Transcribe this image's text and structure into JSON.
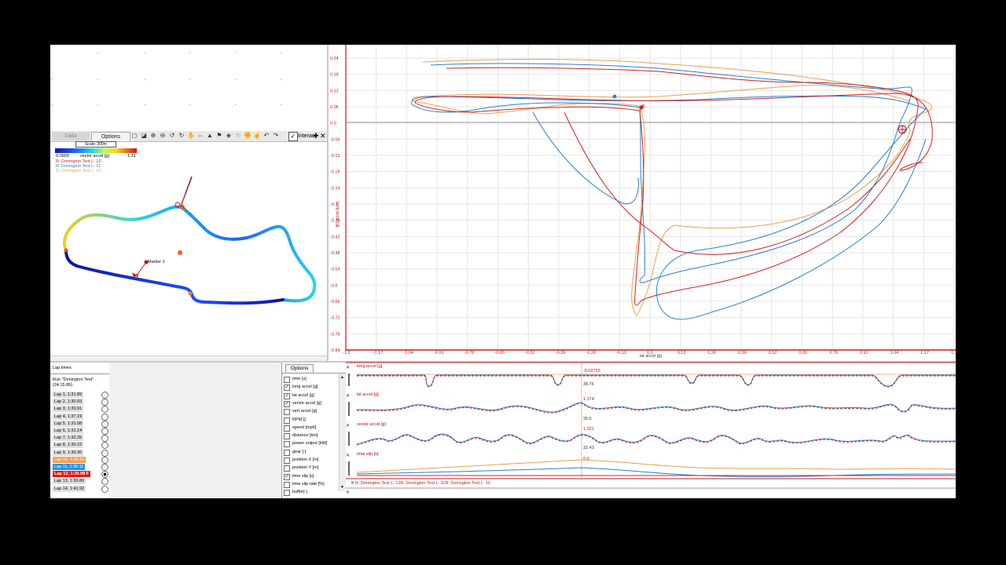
{
  "map_panel": {
    "tabs": [
      "Data",
      "Options"
    ],
    "interact_label": "Interac",
    "scale_label": "Scale: 200m",
    "legend": {
      "min": "0.0993",
      "channel": "vector accel [g]",
      "max": "1.31"
    },
    "runs": [
      {
        "label": "R: Donington Test  L: 12",
        "color": "#d02020"
      },
      {
        "label": "R: Donington Test  L: 11",
        "color": "#2a7fd4"
      },
      {
        "label": "R: Donington Test  L: 10",
        "color": "#e8a050"
      }
    ],
    "marker_label": "Marker 1"
  },
  "xy_plot": {
    "y_axis_label": "long accel [g]",
    "x_axis_label": "lat accel [g]",
    "y_ticks": [
      "0.24",
      "0.18",
      "0.12",
      "0.06",
      "0.0",
      "-0.06",
      "-0.12",
      "-0.18",
      "-0.24",
      "-0.3",
      "-0.36",
      "-0.42",
      "-0.48",
      "-0.54",
      "-0.6",
      "-0.66",
      "-0.72",
      "-0.78",
      "-0.84"
    ],
    "x_ticks": [
      "-1.3",
      "-1.17",
      "-1.04",
      "-0.91",
      "-0.78",
      "-0.65",
      "-0.52",
      "-0.39",
      "-0.26",
      "-0.13",
      "0.0",
      "0.13",
      "0.26",
      "0.39",
      "0.52",
      "0.65",
      "0.78",
      "0.91",
      "1.04",
      "1.17",
      "1.3"
    ]
  },
  "lap_panel": {
    "title": "Lap times",
    "run_name": "Run \"Donington Test\"",
    "run_time": "(24:15.89)",
    "laps": [
      {
        "label": "Lap 1, 1:31.89",
        "state": "normal"
      },
      {
        "label": "Lap 2, 1:30.93",
        "state": "normal"
      },
      {
        "label": "Lap 3, 1:30.91",
        "state": "normal"
      },
      {
        "label": "Lap 4, 1:37.19",
        "state": "normal"
      },
      {
        "label": "Lap 5, 1:31.08",
        "state": "normal"
      },
      {
        "label": "Lap 6, 1:31.14",
        "state": "normal"
      },
      {
        "label": "Lap 7, 1:32.25",
        "state": "normal"
      },
      {
        "label": "Lap 8, 1:30.23",
        "state": "normal"
      },
      {
        "label": "Lap 9, 1:30.30",
        "state": "normal"
      },
      {
        "label": "Lap 10, 1:30.10",
        "state": "orange"
      },
      {
        "label": "Lap 11, 1:30.11",
        "state": "blue"
      },
      {
        "label": "Lap 12, 1:30.08 F",
        "state": "red"
      },
      {
        "label": "Lap 13, 1:30.80",
        "state": "normal"
      },
      {
        "label": "Lap 14, 1:41.92",
        "state": "normal"
      }
    ]
  },
  "channel_panel": {
    "tab": "Options",
    "channels": [
      {
        "name": "time [s]",
        "checked": false
      },
      {
        "name": "long accel [g]",
        "checked": true
      },
      {
        "name": "lat accel [g]",
        "checked": true
      },
      {
        "name": "vector accel [g]",
        "checked": true
      },
      {
        "name": "vert accel [g]",
        "checked": false
      },
      {
        "name": "RPM []",
        "checked": false
      },
      {
        "name": "speed [mph]",
        "checked": false
      },
      {
        "name": "distance [km]",
        "checked": false
      },
      {
        "name": "power output [kW]",
        "checked": false
      },
      {
        "name": "gear [-]",
        "checked": false
      },
      {
        "name": "position X [m]",
        "checked": false
      },
      {
        "name": "position Y [m]",
        "checked": false
      },
      {
        "name": "time slip [s]",
        "checked": true
      },
      {
        "name": "time slip rate [%]",
        "checked": false
      },
      {
        "name": "buffer[-]",
        "checked": false
      }
    ]
  },
  "strips": [
    {
      "title": "long accel [g]",
      "readout_1": "-0.02723",
      "readout_2": "38.76"
    },
    {
      "title": "lat accel [g]",
      "readout_1": "1.174",
      "readout_2": "35.6"
    },
    {
      "title": "vector accel [g]",
      "readout_1": "1.222",
      "readout_2": "32.43"
    },
    {
      "title": "time slip [s]",
      "readout_1": "0.0",
      "readout_2": ""
    }
  ],
  "strip_legend": "R: Donington Test  L: 12R: Donington Test  L: 11R: Donington Test  L: 10",
  "colors": {
    "lap12": "#d02020",
    "lap11": "#2a7fd4",
    "lap10": "#e8a050",
    "axis": "#c01818"
  }
}
